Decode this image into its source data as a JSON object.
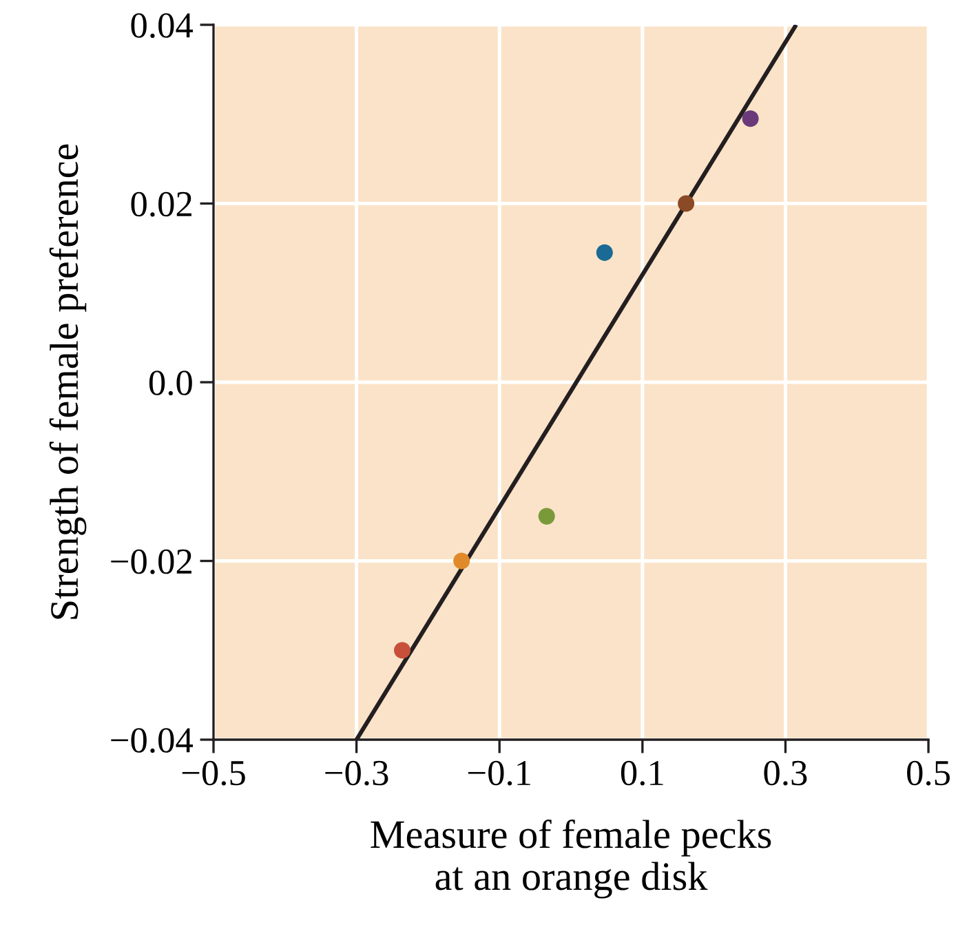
{
  "chart_data": {
    "type": "scatter",
    "xlabel": "Measure of female pecks\nat an orange disk",
    "ylabel": "Strength of female preference",
    "xlim": [
      -0.5,
      0.5
    ],
    "ylim": [
      -0.04,
      0.04
    ],
    "xticks": [
      {
        "value": -0.5,
        "label": "−0.5"
      },
      {
        "value": -0.3,
        "label": "−0.3"
      },
      {
        "value": -0.1,
        "label": "−0.1"
      },
      {
        "value": 0.1,
        "label": "0.1"
      },
      {
        "value": 0.3,
        "label": "0.3"
      },
      {
        "value": 0.5,
        "label": "0.5"
      }
    ],
    "yticks": [
      {
        "value": -0.04,
        "label": "−0.04"
      },
      {
        "value": -0.02,
        "label": "−0.02"
      },
      {
        "value": 0,
        "label": "0.0"
      },
      {
        "value": 0.02,
        "label": "0.02"
      },
      {
        "value": 0.04,
        "label": "0.04"
      }
    ],
    "grid": true,
    "series": [
      {
        "marker": "circle",
        "x": [
          -0.236,
          -0.153,
          -0.034,
          0.047,
          0.161,
          0.251
        ],
        "values": [
          -0.03,
          -0.02,
          -0.015,
          0.0145,
          0.02,
          0.0295
        ],
        "colors": [
          "#c8503a",
          "#e08a2a",
          "#7a9a3a",
          "#1a6a95",
          "#8a4a25",
          "#6a3a7a"
        ]
      },
      {
        "type": "line",
        "x": [
          -0.3,
          0.315
        ],
        "values": [
          -0.04,
          0.04
        ],
        "color": "#231f20",
        "marker": "none"
      }
    ]
  }
}
